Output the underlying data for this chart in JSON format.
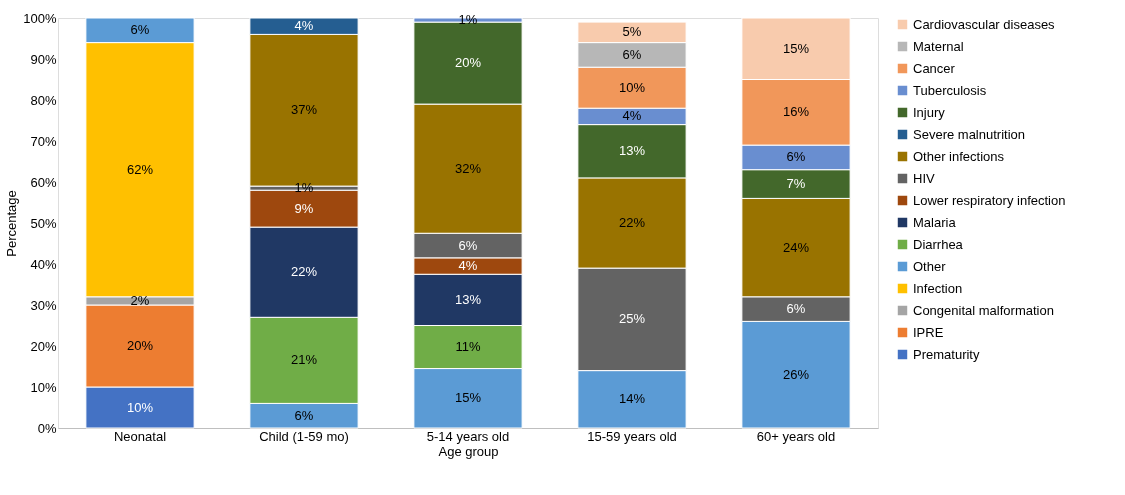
{
  "chart_data": {
    "type": "bar",
    "stacked": true,
    "xlabel": "Age group",
    "ylabel": "Percentage",
    "legend": "right",
    "grid": false,
    "categories": [
      "Neonatal",
      "Child (1-59 mo)",
      "5-14 years old",
      "15-59 years old",
      "60+ years old"
    ],
    "ylim": [
      0,
      100
    ],
    "yticks": [
      {
        "value": 0,
        "label": "0%"
      },
      {
        "value": 10,
        "label": "10%"
      },
      {
        "value": 20,
        "label": "20%"
      },
      {
        "value": 30,
        "label": "30%"
      },
      {
        "value": 40,
        "label": "40%"
      },
      {
        "value": 50,
        "label": "50%"
      },
      {
        "value": 60,
        "label": "60%"
      },
      {
        "value": 70,
        "label": "70%"
      },
      {
        "value": 80,
        "label": "80%"
      },
      {
        "value": 90,
        "label": "90%"
      },
      {
        "value": 100,
        "label": "100%"
      }
    ],
    "series": [
      {
        "name": "Prematurity",
        "color": "#4472c4",
        "values": [
          10,
          null,
          null,
          null,
          null
        ],
        "value_labels": [
          "10%",
          null,
          null,
          null,
          null
        ]
      },
      {
        "name": "IPRE",
        "color": "#ed7d31",
        "values": [
          20,
          null,
          null,
          null,
          null
        ],
        "value_labels": [
          "20%",
          null,
          null,
          null,
          null
        ]
      },
      {
        "name": "Congenital malformation",
        "color": "#a5a5a5",
        "values": [
          2,
          null,
          null,
          null,
          null
        ],
        "value_labels": [
          "2%",
          null,
          null,
          null,
          null
        ]
      },
      {
        "name": "Infection",
        "color": "#ffc000",
        "values": [
          62,
          null,
          null,
          null,
          null
        ],
        "value_labels": [
          "62%",
          null,
          null,
          null,
          null
        ]
      },
      {
        "name": "Other",
        "color": "#5b9bd5",
        "values": [
          6,
          6,
          14.5,
          14,
          26
        ],
        "value_labels": [
          "6%",
          "6%",
          "15%",
          "14%",
          "26%"
        ]
      },
      {
        "name": "Diarrhea",
        "color": "#70ad47",
        "values": [
          null,
          21,
          10.5,
          null,
          null
        ],
        "value_labels": [
          null,
          "21%",
          "11%",
          null,
          null
        ]
      },
      {
        "name": "Malaria",
        "color": "#203864",
        "values": [
          null,
          22,
          12.5,
          null,
          null
        ],
        "value_labels": [
          null,
          "22%",
          "13%",
          null,
          null
        ]
      },
      {
        "name": "Lower respiratory infection",
        "color": "#9e480e",
        "values": [
          null,
          9,
          4,
          null,
          null
        ],
        "value_labels": [
          null,
          "9%",
          "4%",
          null,
          null
        ]
      },
      {
        "name": "HIV",
        "color": "#636363",
        "values": [
          null,
          1,
          6,
          25,
          6
        ],
        "value_labels": [
          null,
          "1%",
          "6%",
          "25%",
          "6%"
        ]
      },
      {
        "name": "Other infections",
        "color": "#997300",
        "values": [
          null,
          37,
          31.5,
          22,
          24
        ],
        "value_labels": [
          null,
          "37%",
          "32%",
          "22%",
          "24%"
        ]
      },
      {
        "name": "Severe malnutrition",
        "color": "#255e91",
        "values": [
          null,
          4,
          null,
          null,
          null
        ],
        "value_labels": [
          null,
          "4%",
          null,
          null,
          null
        ]
      },
      {
        "name": "Injury",
        "color": "#43682b",
        "values": [
          null,
          null,
          20,
          13,
          7
        ],
        "value_labels": [
          null,
          null,
          "20%",
          "13%",
          "7%"
        ]
      },
      {
        "name": "Tuberculosis",
        "color": "#698ed0",
        "values": [
          null,
          null,
          1,
          4,
          6
        ],
        "value_labels": [
          null,
          null,
          "1%",
          "4%",
          "6%"
        ]
      },
      {
        "name": "Cancer",
        "color": "#f1975a",
        "values": [
          null,
          null,
          null,
          10,
          16
        ],
        "value_labels": [
          null,
          null,
          null,
          "10%",
          "16%"
        ]
      },
      {
        "name": "Maternal",
        "color": "#b7b7b7",
        "values": [
          null,
          null,
          null,
          6,
          null
        ],
        "value_labels": [
          null,
          null,
          null,
          "6%",
          null
        ]
      },
      {
        "name": "Cardiovascular diseases",
        "color": "#f8cbad",
        "values": [
          null,
          null,
          null,
          5,
          15
        ],
        "value_labels": [
          null,
          null,
          null,
          "5%",
          "15%"
        ]
      }
    ]
  }
}
